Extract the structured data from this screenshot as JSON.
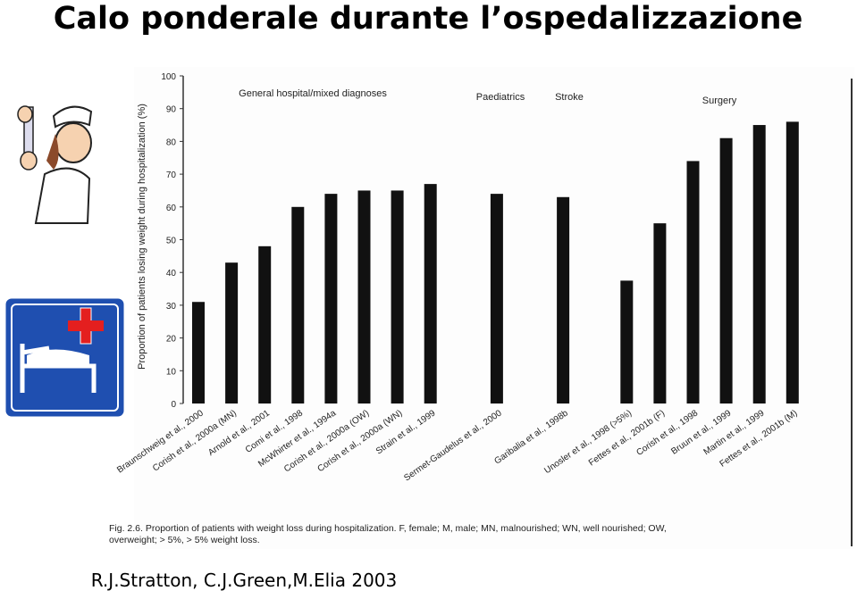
{
  "slide": {
    "title": "Calo ponderale durante l’ospedalizzazione",
    "credit": "R.J.Stratton, C.J.Green,M.Elia 2003"
  },
  "chart_data": {
    "type": "bar",
    "ylabel": "Proportion of patients losing weight during hospitalization (%)",
    "groups": [
      "General hospital/mixed diagnoses",
      "Paediatrics",
      "Stroke",
      "Surgery"
    ],
    "categories": [
      "Braunschweig et al., 2000",
      "Corish et al., 2000a (MN)",
      "Arnold et al., 2001",
      "Comi et al., 1998",
      "McWhirter et al., 1994a",
      "Corish et al., 2000a (OW)",
      "Corish et al., 2000a (WN)",
      "Strain et al., 1999",
      null,
      "Sermet-Gaudelus et al., 2000",
      null,
      "Garibalia et al., 1998b",
      null,
      "Unosler et al., 1998 (>5%)",
      "Fettes et al., 2001b (F)",
      "Corish et al., 1998",
      "Bruun et al., 1999",
      "Martin et al., 1999",
      "Fettes et al., 2001b (M)"
    ],
    "values": [
      31,
      43,
      48,
      60,
      64,
      65,
      65,
      67,
      null,
      64,
      null,
      63,
      null,
      37.5,
      55,
      74,
      81,
      85,
      86
    ],
    "color": "#111111",
    "ylim": [
      0,
      100
    ],
    "yticks": [
      0,
      10,
      20,
      30,
      40,
      50,
      60,
      70,
      80,
      90,
      100
    ],
    "caption": "Fig. 2.6. Proportion of patients with weight loss during hospitalization. F, female; M, male; MN, malnourished; WN, well nourished; OW, overweight; > 5%, > 5% weight loss."
  }
}
